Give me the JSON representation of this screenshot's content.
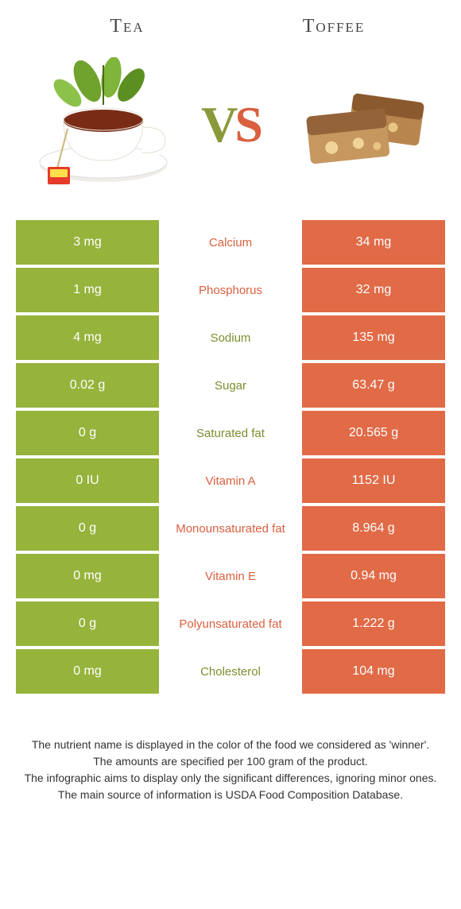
{
  "header": {
    "left_title": "Tea",
    "right_title": "Toffee",
    "vs_v": "V",
    "vs_s": "S"
  },
  "colors": {
    "left_bg": "#96b33c",
    "right_bg": "#e16a47",
    "left_text": "#7a8f2f",
    "right_text": "#d9603f"
  },
  "rows": [
    {
      "left": "3 mg",
      "label": "Calcium",
      "right": "34 mg",
      "winner": "right"
    },
    {
      "left": "1 mg",
      "label": "Phosphorus",
      "right": "32 mg",
      "winner": "right"
    },
    {
      "left": "4 mg",
      "label": "Sodium",
      "right": "135 mg",
      "winner": "left"
    },
    {
      "left": "0.02 g",
      "label": "Sugar",
      "right": "63.47 g",
      "winner": "left"
    },
    {
      "left": "0 g",
      "label": "Saturated fat",
      "right": "20.565 g",
      "winner": "left"
    },
    {
      "left": "0 IU",
      "label": "Vitamin A",
      "right": "1152 IU",
      "winner": "right"
    },
    {
      "left": "0 g",
      "label": "Monounsaturated fat",
      "right": "8.964 g",
      "winner": "right"
    },
    {
      "left": "0 mg",
      "label": "Vitamin E",
      "right": "0.94 mg",
      "winner": "right"
    },
    {
      "left": "0 g",
      "label": "Polyunsaturated fat",
      "right": "1.222 g",
      "winner": "right"
    },
    {
      "left": "0 mg",
      "label": "Cholesterol",
      "right": "104 mg",
      "winner": "left"
    }
  ],
  "footer": {
    "l1": "The nutrient name is displayed in the color of the food we considered as 'winner'.",
    "l2": "The amounts are specified per 100 gram of the product.",
    "l3": "The infographic aims to display only the significant differences, ignoring minor ones.",
    "l4": "The main source of information is USDA Food Composition Database."
  }
}
